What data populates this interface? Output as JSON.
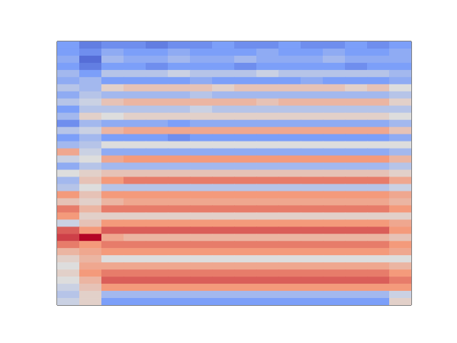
{
  "chart_data": {
    "type": "heatmap",
    "color": "coolwarm",
    "tick_labels": false,
    "xlim": [
      0,
      16
    ],
    "ylim": [
      0,
      37
    ],
    "xticks": [],
    "yticks": [],
    "color_range": [
      -1,
      1
    ],
    "cells": [
      [
        -0.5,
        -0.7,
        -0.6,
        -0.6,
        -0.7,
        -0.6,
        -0.6,
        -0.5,
        -0.6,
        -0.6,
        -0.5,
        -0.6,
        -0.6,
        -0.5,
        -0.6,
        -0.5
      ],
      [
        -0.5,
        -0.6,
        -0.4,
        -0.5,
        -0.5,
        -0.4,
        -0.5,
        -0.5,
        -0.5,
        -0.4,
        -0.5,
        -0.5,
        -0.4,
        -0.5,
        -0.5,
        -0.4
      ],
      [
        -0.4,
        -0.8,
        -0.3,
        -0.4,
        -0.4,
        -0.3,
        -0.4,
        -0.4,
        -0.3,
        -0.4,
        -0.4,
        -0.4,
        -0.3,
        -0.4,
        -0.4,
        -0.4
      ],
      [
        -0.5,
        -0.7,
        -0.5,
        -0.5,
        -0.6,
        -0.5,
        -0.5,
        -0.5,
        -0.6,
        -0.5,
        -0.5,
        -0.5,
        -0.5,
        -0.6,
        -0.5,
        -0.5
      ],
      [
        -0.3,
        -0.5,
        -0.2,
        -0.2,
        -0.2,
        -0.1,
        -0.2,
        -0.2,
        -0.2,
        -0.1,
        -0.2,
        -0.2,
        -0.2,
        -0.2,
        -0.2,
        -0.3
      ],
      [
        -0.4,
        -0.3,
        -0.5,
        -0.5,
        -0.5,
        -0.5,
        -0.4,
        -0.5,
        -0.5,
        -0.5,
        -0.5,
        -0.4,
        -0.5,
        -0.5,
        -0.5,
        -0.4
      ],
      [
        -0.2,
        -0.3,
        0.1,
        0.2,
        0.2,
        0.2,
        0.2,
        0.1,
        0.2,
        0.2,
        0.2,
        0.2,
        0.2,
        0.1,
        0.2,
        0.0
      ],
      [
        -0.4,
        -0.2,
        -0.3,
        -0.3,
        -0.3,
        -0.3,
        -0.2,
        -0.3,
        -0.3,
        -0.3,
        -0.3,
        -0.3,
        -0.3,
        -0.3,
        -0.3,
        -0.2
      ],
      [
        -0.2,
        -0.1,
        0.2,
        0.3,
        0.3,
        0.3,
        0.3,
        0.3,
        0.3,
        0.2,
        0.3,
        0.3,
        0.3,
        0.3,
        0.3,
        0.1
      ],
      [
        -0.5,
        -0.2,
        -0.2,
        -0.2,
        -0.2,
        -0.2,
        -0.1,
        -0.2,
        -0.2,
        -0.2,
        -0.2,
        -0.2,
        -0.2,
        -0.2,
        -0.2,
        -0.2
      ],
      [
        -0.3,
        0.1,
        0.0,
        0.1,
        0.1,
        0.1,
        0.1,
        0.1,
        0.1,
        0.1,
        0.1,
        0.1,
        0.1,
        0.1,
        0.1,
        0.0
      ],
      [
        -0.6,
        -0.3,
        -0.4,
        -0.4,
        -0.4,
        -0.5,
        -0.4,
        -0.4,
        -0.4,
        -0.4,
        -0.4,
        -0.4,
        -0.4,
        -0.4,
        -0.4,
        -0.3
      ],
      [
        -0.2,
        -0.1,
        0.3,
        0.4,
        0.4,
        0.4,
        0.4,
        0.4,
        0.4,
        0.4,
        0.4,
        0.4,
        0.4,
        0.4,
        0.4,
        0.2
      ],
      [
        -0.5,
        -0.3,
        -0.5,
        -0.5,
        -0.5,
        -0.6,
        -0.5,
        -0.5,
        -0.5,
        -0.5,
        -0.5,
        -0.5,
        -0.5,
        -0.5,
        -0.5,
        -0.4
      ],
      [
        -0.3,
        -0.2,
        0.0,
        0.0,
        0.0,
        0.0,
        0.0,
        0.0,
        0.0,
        0.0,
        0.0,
        0.0,
        0.0,
        0.0,
        0.0,
        0.0
      ],
      [
        0.4,
        -0.1,
        -0.4,
        -0.4,
        -0.4,
        -0.4,
        -0.4,
        -0.4,
        -0.4,
        -0.4,
        -0.4,
        -0.4,
        -0.4,
        -0.4,
        -0.4,
        -0.3
      ],
      [
        -0.1,
        0.0,
        0.4,
        0.5,
        0.5,
        0.5,
        0.5,
        0.5,
        0.5,
        0.5,
        0.5,
        0.5,
        0.5,
        0.5,
        0.5,
        0.3
      ],
      [
        -0.4,
        -0.2,
        -0.3,
        -0.3,
        -0.3,
        -0.3,
        -0.3,
        -0.3,
        -0.3,
        -0.3,
        -0.3,
        -0.3,
        -0.3,
        -0.3,
        -0.3,
        -0.2
      ],
      [
        0.0,
        0.1,
        0.2,
        0.2,
        0.2,
        0.2,
        0.2,
        0.2,
        0.2,
        0.2,
        0.2,
        0.2,
        0.2,
        0.2,
        0.2,
        0.1
      ],
      [
        -0.3,
        0.2,
        0.5,
        0.6,
        0.6,
        0.6,
        0.6,
        0.6,
        0.6,
        0.6,
        0.6,
        0.6,
        0.6,
        0.6,
        0.6,
        0.4
      ],
      [
        -0.2,
        0.0,
        -0.2,
        -0.2,
        -0.2,
        -0.2,
        -0.2,
        -0.2,
        -0.2,
        -0.2,
        -0.2,
        -0.2,
        -0.2,
        -0.2,
        -0.2,
        -0.1
      ],
      [
        0.5,
        0.2,
        0.5,
        0.5,
        0.5,
        0.5,
        0.5,
        0.5,
        0.5,
        0.5,
        0.5,
        0.5,
        0.5,
        0.5,
        0.5,
        0.4
      ],
      [
        0.2,
        0.1,
        0.3,
        0.4,
        0.4,
        0.4,
        0.4,
        0.4,
        0.4,
        0.4,
        0.4,
        0.4,
        0.4,
        0.4,
        0.4,
        0.3
      ],
      [
        0.6,
        0.3,
        0.6,
        0.6,
        0.6,
        0.6,
        0.6,
        0.6,
        0.6,
        0.6,
        0.6,
        0.6,
        0.6,
        0.6,
        0.6,
        0.5
      ],
      [
        0.5,
        0.1,
        0.1,
        0.1,
        0.1,
        0.1,
        0.1,
        0.1,
        0.1,
        0.1,
        0.1,
        0.1,
        0.1,
        0.1,
        0.1,
        0.1
      ],
      [
        -0.1,
        0.2,
        0.5,
        0.5,
        0.5,
        0.5,
        0.5,
        0.5,
        0.5,
        0.5,
        0.5,
        0.5,
        0.5,
        0.5,
        0.5,
        0.4
      ],
      [
        0.7,
        0.5,
        0.7,
        0.7,
        0.7,
        0.7,
        0.7,
        0.7,
        0.7,
        0.7,
        0.7,
        0.7,
        0.7,
        0.7,
        0.7,
        0.5
      ],
      [
        0.8,
        1.0,
        0.4,
        0.3,
        0.3,
        0.3,
        0.3,
        0.3,
        0.3,
        0.3,
        0.3,
        0.3,
        0.3,
        0.3,
        0.3,
        0.2
      ],
      [
        0.6,
        0.5,
        0.6,
        0.6,
        0.6,
        0.6,
        0.6,
        0.6,
        0.6,
        0.6,
        0.6,
        0.6,
        0.6,
        0.6,
        0.6,
        0.5
      ],
      [
        0.3,
        0.4,
        0.5,
        0.5,
        0.5,
        0.5,
        0.5,
        0.5,
        0.5,
        0.5,
        0.5,
        0.5,
        0.5,
        0.5,
        0.5,
        0.4
      ],
      [
        0.1,
        0.3,
        0.0,
        0.0,
        0.0,
        0.0,
        0.0,
        0.0,
        0.0,
        0.0,
        0.0,
        0.0,
        0.0,
        0.0,
        0.0,
        0.0
      ],
      [
        0.0,
        0.4,
        0.4,
        0.4,
        0.4,
        0.4,
        0.4,
        0.4,
        0.4,
        0.4,
        0.4,
        0.4,
        0.4,
        0.4,
        0.4,
        0.3
      ],
      [
        0.1,
        0.5,
        0.6,
        0.6,
        0.6,
        0.6,
        0.6,
        0.6,
        0.6,
        0.6,
        0.6,
        0.6,
        0.6,
        0.6,
        0.6,
        0.5
      ],
      [
        0.0,
        0.3,
        0.7,
        0.7,
        0.7,
        0.7,
        0.7,
        0.7,
        0.7,
        0.7,
        0.7,
        0.7,
        0.7,
        0.7,
        0.7,
        0.6
      ],
      [
        -0.1,
        0.2,
        0.5,
        0.5,
        0.5,
        0.5,
        0.5,
        0.5,
        0.5,
        0.5,
        0.5,
        0.5,
        0.5,
        0.5,
        0.5,
        0.5
      ],
      [
        -0.2,
        0.1,
        -0.3,
        -0.3,
        -0.3,
        -0.3,
        -0.3,
        -0.3,
        -0.3,
        -0.3,
        -0.3,
        -0.3,
        -0.3,
        -0.3,
        -0.3,
        -0.1
      ],
      [
        -0.1,
        0.1,
        -0.5,
        -0.5,
        -0.5,
        -0.5,
        -0.5,
        -0.5,
        -0.5,
        -0.5,
        -0.5,
        -0.5,
        -0.5,
        -0.5,
        -0.5,
        0.1
      ]
    ]
  }
}
